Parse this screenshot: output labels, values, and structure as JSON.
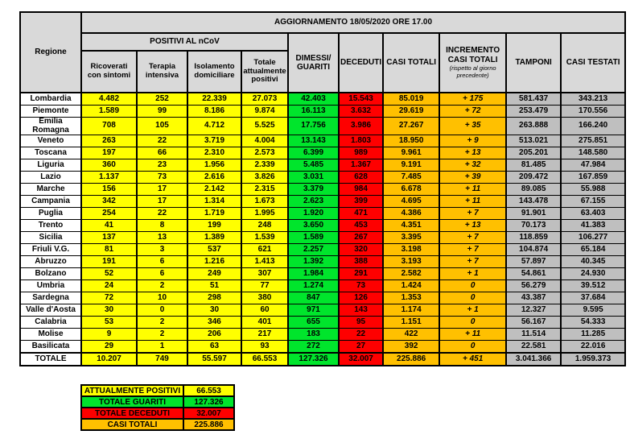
{
  "colors": {
    "yellow": "#ffff00",
    "green": "#00e52c",
    "red": "#fe0000",
    "orange": "#ffc000",
    "gray_data": "#bfbfbf",
    "gray_header": "#d9d9d9"
  },
  "chart_data": {
    "type": "table",
    "title": "AGGIORNAMENTO 18/05/2020 ORE 17.00",
    "headers": {
      "regione": "Regione",
      "positivi_group": "POSITIVI AL nCoV",
      "ricoverati": "Ricoverati con sintomi",
      "terapia": "Terapia intensiva",
      "isolamento": "Isolamento domiciliare",
      "totale_positivi": "Totale attualmente positivi",
      "dimessi": "DIMESSI/ GUARITI",
      "deceduti": "DECEDUTI",
      "casi_totali": "CASI TOTALI",
      "incremento": "INCREMENTO CASI  TOTALI",
      "incremento_note": "(rispetto al giorno precedente)",
      "tamponi": "TAMPONI",
      "casi_testati": "CASI TESTATI"
    },
    "rows": [
      {
        "region": "Lombardia",
        "ricoverati": "4.482",
        "terapia": "252",
        "isolamento": "22.339",
        "totale_positivi": "27.073",
        "guariti": "42.403",
        "deceduti": "15.543",
        "casi_totali": "85.019",
        "incremento": "+ 175",
        "tamponi": "581.437",
        "casi_testati": "343.213"
      },
      {
        "region": "Piemonte",
        "ricoverati": "1.589",
        "terapia": "99",
        "isolamento": "8.186",
        "totale_positivi": "9.874",
        "guariti": "16.113",
        "deceduti": "3.632",
        "casi_totali": "29.619",
        "incremento": "+ 72",
        "tamponi": "253.479",
        "casi_testati": "170.556"
      },
      {
        "region": "Emilia Romagna",
        "ricoverati": "708",
        "terapia": "105",
        "isolamento": "4.712",
        "totale_positivi": "5.525",
        "guariti": "17.756",
        "deceduti": "3.986",
        "casi_totali": "27.267",
        "incremento": "+ 35",
        "tamponi": "263.888",
        "casi_testati": "166.240"
      },
      {
        "region": "Veneto",
        "ricoverati": "263",
        "terapia": "22",
        "isolamento": "3.719",
        "totale_positivi": "4.004",
        "guariti": "13.143",
        "deceduti": "1.803",
        "casi_totali": "18.950",
        "incremento": "+ 9",
        "tamponi": "513.021",
        "casi_testati": "275.851"
      },
      {
        "region": "Toscana",
        "ricoverati": "197",
        "terapia": "66",
        "isolamento": "2.310",
        "totale_positivi": "2.573",
        "guariti": "6.399",
        "deceduti": "989",
        "casi_totali": "9.961",
        "incremento": "+ 13",
        "tamponi": "205.201",
        "casi_testati": "148.580"
      },
      {
        "region": "Liguria",
        "ricoverati": "360",
        "terapia": "23",
        "isolamento": "1.956",
        "totale_positivi": "2.339",
        "guariti": "5.485",
        "deceduti": "1.367",
        "casi_totali": "9.191",
        "incremento": "+ 32",
        "tamponi": "81.485",
        "casi_testati": "47.984"
      },
      {
        "region": "Lazio",
        "ricoverati": "1.137",
        "terapia": "73",
        "isolamento": "2.616",
        "totale_positivi": "3.826",
        "guariti": "3.031",
        "deceduti": "628",
        "casi_totali": "7.485",
        "incremento": "+ 39",
        "tamponi": "209.472",
        "casi_testati": "167.859"
      },
      {
        "region": "Marche",
        "ricoverati": "156",
        "terapia": "17",
        "isolamento": "2.142",
        "totale_positivi": "2.315",
        "guariti": "3.379",
        "deceduti": "984",
        "casi_totali": "6.678",
        "incremento": "+ 11",
        "tamponi": "89.085",
        "casi_testati": "55.988"
      },
      {
        "region": "Campania",
        "ricoverati": "342",
        "terapia": "17",
        "isolamento": "1.314",
        "totale_positivi": "1.673",
        "guariti": "2.623",
        "deceduti": "399",
        "casi_totali": "4.695",
        "incremento": "+ 11",
        "tamponi": "143.478",
        "casi_testati": "67.155"
      },
      {
        "region": "Puglia",
        "ricoverati": "254",
        "terapia": "22",
        "isolamento": "1.719",
        "totale_positivi": "1.995",
        "guariti": "1.920",
        "deceduti": "471",
        "casi_totali": "4.386",
        "incremento": "+ 7",
        "tamponi": "91.901",
        "casi_testati": "63.403"
      },
      {
        "region": "Trento",
        "ricoverati": "41",
        "terapia": "8",
        "isolamento": "199",
        "totale_positivi": "248",
        "guariti": "3.650",
        "deceduti": "453",
        "casi_totali": "4.351",
        "incremento": "+ 13",
        "tamponi": "70.173",
        "casi_testati": "41.383"
      },
      {
        "region": "Sicilia",
        "ricoverati": "137",
        "terapia": "13",
        "isolamento": "1.389",
        "totale_positivi": "1.539",
        "guariti": "1.589",
        "deceduti": "267",
        "casi_totali": "3.395",
        "incremento": "+ 7",
        "tamponi": "118.859",
        "casi_testati": "106.277"
      },
      {
        "region": "Friuli V.G.",
        "ricoverati": "81",
        "terapia": "3",
        "isolamento": "537",
        "totale_positivi": "621",
        "guariti": "2.257",
        "deceduti": "320",
        "casi_totali": "3.198",
        "incremento": "+ 7",
        "tamponi": "104.874",
        "casi_testati": "65.184"
      },
      {
        "region": "Abruzzo",
        "ricoverati": "191",
        "terapia": "6",
        "isolamento": "1.216",
        "totale_positivi": "1.413",
        "guariti": "1.392",
        "deceduti": "388",
        "casi_totali": "3.193",
        "incremento": "+ 7",
        "tamponi": "57.897",
        "casi_testati": "40.345"
      },
      {
        "region": "Bolzano",
        "ricoverati": "52",
        "terapia": "6",
        "isolamento": "249",
        "totale_positivi": "307",
        "guariti": "1.984",
        "deceduti": "291",
        "casi_totali": "2.582",
        "incremento": "+ 1",
        "tamponi": "54.861",
        "casi_testati": "24.930"
      },
      {
        "region": "Umbria",
        "ricoverati": "24",
        "terapia": "2",
        "isolamento": "51",
        "totale_positivi": "77",
        "guariti": "1.274",
        "deceduti": "73",
        "casi_totali": "1.424",
        "incremento": "0",
        "tamponi": "56.279",
        "casi_testati": "39.512"
      },
      {
        "region": "Sardegna",
        "ricoverati": "72",
        "terapia": "10",
        "isolamento": "298",
        "totale_positivi": "380",
        "guariti": "847",
        "deceduti": "126",
        "casi_totali": "1.353",
        "incremento": "0",
        "tamponi": "43.387",
        "casi_testati": "37.684"
      },
      {
        "region": "Valle d'Aosta",
        "ricoverati": "30",
        "terapia": "0",
        "isolamento": "30",
        "totale_positivi": "60",
        "guariti": "971",
        "deceduti": "143",
        "casi_totali": "1.174",
        "incremento": "+ 1",
        "tamponi": "12.327",
        "casi_testati": "9.595"
      },
      {
        "region": "Calabria",
        "ricoverati": "53",
        "terapia": "2",
        "isolamento": "346",
        "totale_positivi": "401",
        "guariti": "655",
        "deceduti": "95",
        "casi_totali": "1.151",
        "incremento": "0",
        "tamponi": "56.167",
        "casi_testati": "54.333"
      },
      {
        "region": "Molise",
        "ricoverati": "9",
        "terapia": "2",
        "isolamento": "206",
        "totale_positivi": "217",
        "guariti": "183",
        "deceduti": "22",
        "casi_totali": "422",
        "incremento": "+ 11",
        "tamponi": "11.514",
        "casi_testati": "11.285"
      },
      {
        "region": "Basilicata",
        "ricoverati": "29",
        "terapia": "1",
        "isolamento": "63",
        "totale_positivi": "93",
        "guariti": "272",
        "deceduti": "27",
        "casi_totali": "392",
        "incremento": "0",
        "tamponi": "22.581",
        "casi_testati": "22.016"
      }
    ],
    "totale": {
      "region": "TOTALE",
      "ricoverati": "10.207",
      "terapia": "749",
      "isolamento": "55.597",
      "totale_positivi": "66.553",
      "guariti": "127.326",
      "deceduti": "32.007",
      "casi_totali": "225.886",
      "incremento": "+ 451",
      "tamponi": "3.041.366",
      "casi_testati": "1.959.373"
    },
    "summary": [
      {
        "label": "ATTUALMENTE POSITIVI",
        "value": "66.553",
        "color": "yellow"
      },
      {
        "label": "TOTALE GUARITI",
        "value": "127.326",
        "color": "green"
      },
      {
        "label": "TOTALE DECEDUTI",
        "value": "32.007",
        "color": "red"
      },
      {
        "label": "CASI TOTALI",
        "value": "225.886",
        "color": "orange"
      }
    ]
  }
}
